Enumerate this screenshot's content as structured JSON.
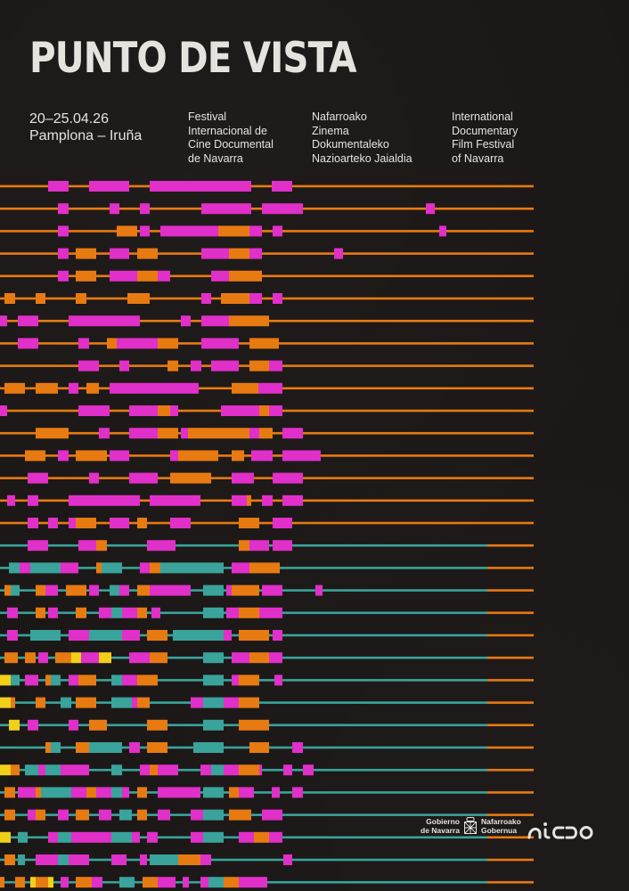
{
  "poster": {
    "title": "PUNTO DE VISTA",
    "dates": "20–25.04.26",
    "place": "Pamplona – Iruña",
    "spanish": [
      "Festival",
      "Internacional de",
      "Cine Documental",
      "de Navarra"
    ],
    "basque": [
      "Nafarroako",
      "Zinema",
      "Dokumentaleko",
      "Nazioarteko Jaialdia"
    ],
    "english": [
      "International",
      "Documentary",
      "Film Festival",
      "of Navarra"
    ]
  },
  "sponsors": {
    "government_left": [
      "Gobierno",
      "de Navarra"
    ],
    "government_right": [
      "Nafarroako",
      "Gobernua"
    ],
    "government_emblem_icon": "navarra-coat-of-arms-icon",
    "partner_logo": "nicdo"
  },
  "colors": {
    "background": "#1b1716",
    "text": "#e6e3df",
    "orange": "#e87a12",
    "magenta": "#e12fc9",
    "teal": "#3aa39b",
    "yellow": "#f2d019"
  }
}
